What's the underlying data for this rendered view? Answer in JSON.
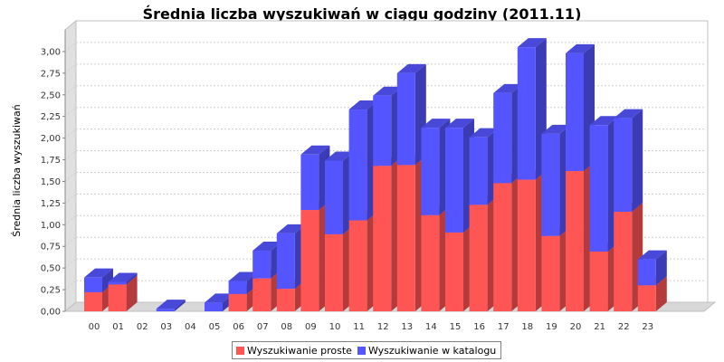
{
  "colors": {
    "proste": "#ff5555",
    "katalog": "#5555ff"
  },
  "chart_data": {
    "type": "bar",
    "stacked": true,
    "three_d": true,
    "title": "Średnia liczba wyszukiwań w ciągu godziny (2011.11)",
    "ylabel": "Średnia liczba wyszukiwań",
    "xlabel": "",
    "ylim": [
      0,
      3.25
    ],
    "yticks": [
      "0,00",
      "0,25",
      "0,50",
      "0,75",
      "1,00",
      "1,25",
      "1,50",
      "1,75",
      "2,00",
      "2,25",
      "2,50",
      "2,75",
      "3,00"
    ],
    "ytick_values": [
      0,
      0.25,
      0.5,
      0.75,
      1.0,
      1.25,
      1.5,
      1.75,
      2.0,
      2.25,
      2.5,
      2.75,
      3.0
    ],
    "grid": true,
    "legend_position": "bottom",
    "categories": [
      "00",
      "01",
      "02",
      "03",
      "04",
      "05",
      "06",
      "07",
      "08",
      "09",
      "10",
      "11",
      "12",
      "13",
      "14",
      "15",
      "16",
      "17",
      "18",
      "19",
      "20",
      "21",
      "22",
      "23"
    ],
    "series": [
      {
        "name": "Wyszukiwanie proste",
        "values": [
          0.22,
          0.31,
          0,
          0,
          0,
          0,
          0.2,
          0.38,
          0.26,
          1.17,
          0.89,
          1.05,
          1.68,
          1.69,
          1.11,
          0.91,
          1.23,
          1.48,
          1.52,
          0.87,
          1.62,
          0.69,
          1.15,
          0.3
        ]
      },
      {
        "name": "Wyszukiwanie w katalogu",
        "values": [
          0.17,
          0.03,
          0,
          0.03,
          0,
          0.1,
          0.15,
          0.32,
          0.64,
          0.64,
          0.85,
          1.28,
          0.81,
          1.06,
          1.01,
          1.21,
          0.78,
          1.04,
          1.53,
          1.18,
          1.36,
          1.46,
          1.08,
          0.3
        ]
      }
    ]
  }
}
